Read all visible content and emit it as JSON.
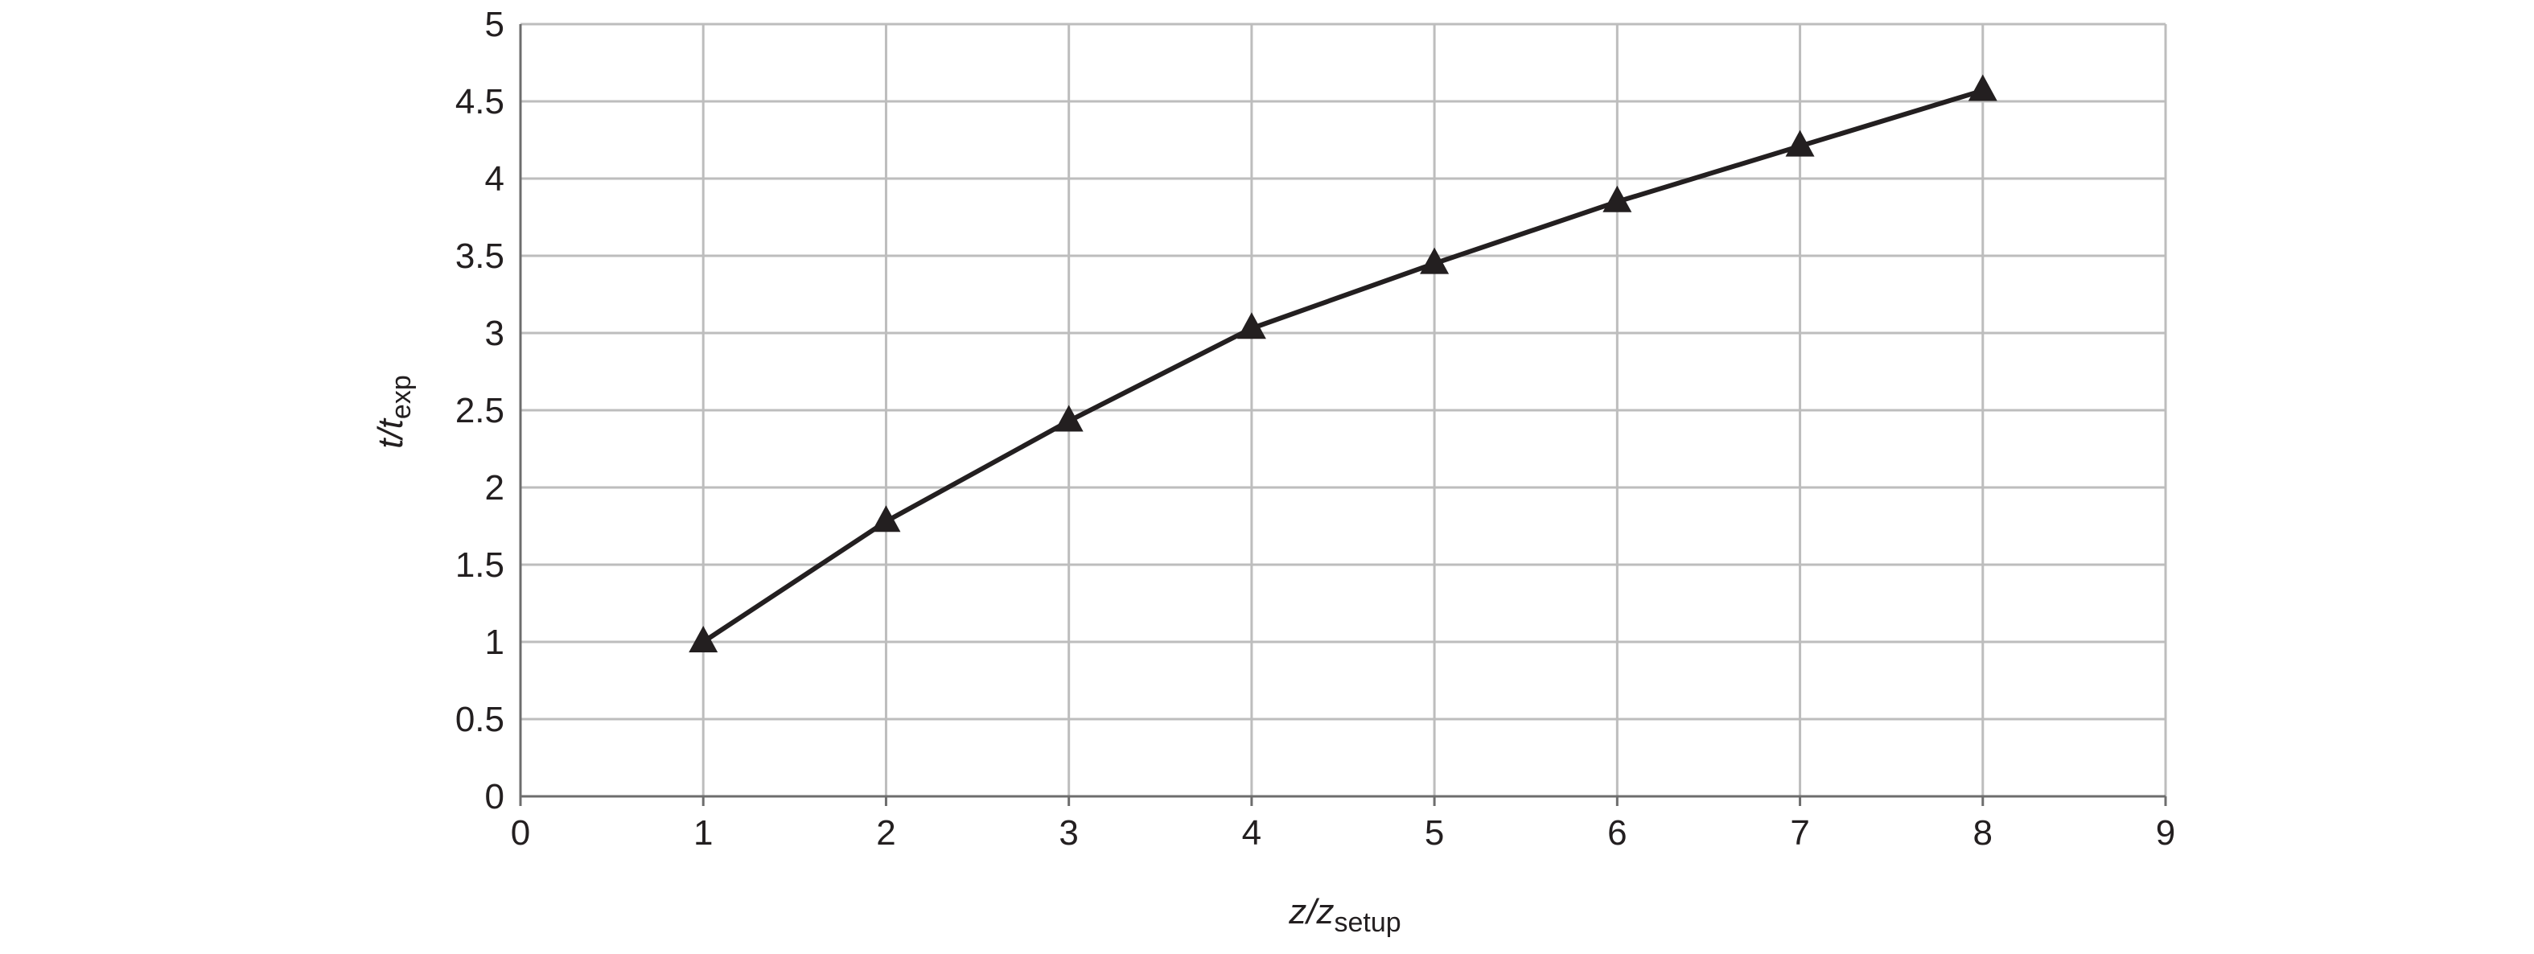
{
  "chart_data": {
    "type": "line",
    "x": [
      1,
      2,
      3,
      4,
      5,
      6,
      7,
      8
    ],
    "values": [
      1.0,
      1.78,
      2.43,
      3.03,
      3.45,
      3.85,
      4.21,
      4.57
    ],
    "color": "#231f20",
    "marker": "triangle",
    "xlim": [
      0,
      9
    ],
    "xticks": [
      0,
      1,
      2,
      3,
      4,
      5,
      6,
      7,
      8,
      9
    ],
    "ylim": [
      0,
      5
    ],
    "yticks": [
      0,
      0.5,
      1,
      1.5,
      2,
      2.5,
      3,
      3.5,
      4,
      4.5,
      5
    ],
    "grid": true,
    "x_label": {
      "main": "z/z",
      "sub": "setup"
    },
    "y_label": {
      "main": "t/t",
      "sub": "exp"
    }
  }
}
